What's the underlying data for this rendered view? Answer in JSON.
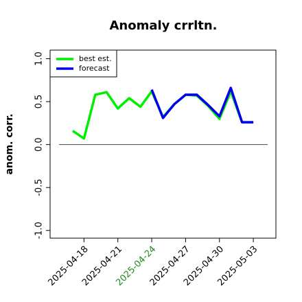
{
  "chart_data": {
    "type": "line",
    "title": "Anomaly crrltn.",
    "ylabel": "anom. corr.",
    "x": [
      "2025-04-17",
      "2025-04-18",
      "2025-04-19",
      "2025-04-20",
      "2025-04-21",
      "2025-04-22",
      "2025-04-23",
      "2025-04-24",
      "2025-04-25",
      "2025-04-26",
      "2025-04-27",
      "2025-04-28",
      "2025-04-29",
      "2025-04-30",
      "2025-05-01",
      "2025-05-02",
      "2025-05-03"
    ],
    "series": [
      {
        "name": "best est.",
        "color": "#00ee00",
        "values": [
          0.16,
          0.07,
          0.58,
          0.61,
          0.42,
          0.54,
          0.44,
          0.62,
          0.32,
          0.47,
          0.58,
          0.57,
          0.45,
          0.3,
          0.62,
          0.26,
          0.26
        ]
      },
      {
        "name": "forecast",
        "color": "#0000ee",
        "values": [
          null,
          null,
          null,
          null,
          null,
          null,
          null,
          0.64,
          0.31,
          0.47,
          0.58,
          0.58,
          0.46,
          0.33,
          0.66,
          0.26,
          0.26
        ]
      }
    ],
    "hline": 0,
    "xlim": [
      "2025-04-15",
      "2025-05-05"
    ],
    "xticks": [
      "2025-04-18",
      "2025-04-21",
      "2025-04-24",
      "2025-04-27",
      "2025-04-30",
      "2025-05-03"
    ],
    "xtick_colors": [
      "#000000",
      "#000000",
      "#228b22",
      "#000000",
      "#000000",
      "#000000"
    ],
    "ylim": [
      -1.09,
      1.1
    ],
    "yticks": [
      {
        "value": -1,
        "label": "-1.0"
      },
      -0.5,
      {
        "value": 0,
        "label": "0.0"
      },
      0.5,
      {
        "value": 1,
        "label": "1.0"
      }
    ],
    "legend": "top-left"
  }
}
